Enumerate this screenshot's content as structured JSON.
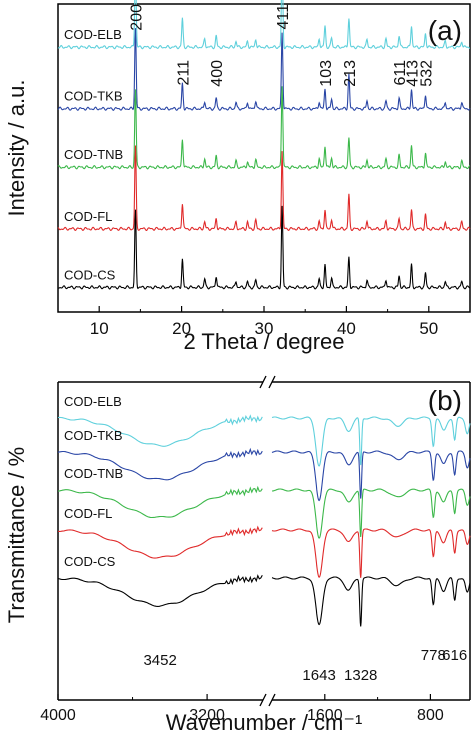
{
  "chart_data": [
    {
      "type": "line",
      "panel_label": "(a)",
      "xlabel": "2 Theta / degree",
      "ylabel": "Intensity / a.u.",
      "xlim": [
        5,
        55
      ],
      "xticks": [
        10,
        20,
        30,
        40,
        50
      ],
      "series": [
        {
          "name": "COD-ELB",
          "color": "#5fd0dc",
          "baseline": 0.14,
          "scale": 0.72
        },
        {
          "name": "COD-TKB",
          "color": "#2a46a6",
          "baseline": 0.34,
          "scale": 0.72
        },
        {
          "name": "COD-TNB",
          "color": "#3cb84a",
          "baseline": 0.53,
          "scale": 0.72
        },
        {
          "name": "COD-FL",
          "color": "#e02a2a",
          "baseline": 0.73,
          "scale": 0.72
        },
        {
          "name": "COD-CS",
          "color": "#000000",
          "baseline": 0.92,
          "scale": 0.72
        }
      ],
      "peaks": [
        {
          "two_theta": 14.4,
          "intensity": 1.0
        },
        {
          "two_theta": 20.1,
          "intensity": 0.34
        },
        {
          "two_theta": 22.8,
          "intensity": 0.1
        },
        {
          "two_theta": 24.2,
          "intensity": 0.14
        },
        {
          "two_theta": 26.6,
          "intensity": 0.08
        },
        {
          "two_theta": 28.0,
          "intensity": 0.08
        },
        {
          "two_theta": 29.0,
          "intensity": 0.1
        },
        {
          "two_theta": 32.2,
          "intensity": 1.0
        },
        {
          "two_theta": 36.7,
          "intensity": 0.1
        },
        {
          "two_theta": 37.4,
          "intensity": 0.26
        },
        {
          "two_theta": 38.2,
          "intensity": 0.12
        },
        {
          "two_theta": 40.3,
          "intensity": 0.4
        },
        {
          "two_theta": 42.5,
          "intensity": 0.1
        },
        {
          "two_theta": 44.8,
          "intensity": 0.1
        },
        {
          "two_theta": 46.4,
          "intensity": 0.14
        },
        {
          "two_theta": 47.9,
          "intensity": 0.26
        },
        {
          "two_theta": 49.6,
          "intensity": 0.18
        },
        {
          "two_theta": 52.0,
          "intensity": 0.08
        },
        {
          "two_theta": 54.0,
          "intensity": 0.08
        }
      ],
      "annotations": [
        {
          "text": "200",
          "x": 14.4
        },
        {
          "text": "211",
          "x": 20.1
        },
        {
          "text": "400",
          "x": 24.2
        },
        {
          "text": "411",
          "x": 32.2
        },
        {
          "text": "103",
          "x": 37.4
        },
        {
          "text": "213",
          "x": 40.3
        },
        {
          "text": "611",
          "x": 46.4
        },
        {
          "text": "413",
          "x": 47.9
        },
        {
          "text": "532",
          "x": 49.6
        }
      ]
    },
    {
      "type": "line",
      "panel_label": "(b)",
      "xlabel": "Wavenumber / cm⁻¹",
      "ylabel": "Transmittance / %",
      "x_break": [
        2900,
        2000
      ],
      "xticks": [
        {
          "label": "4000",
          "value": 4000
        },
        {
          "label": "3200",
          "value": 3200
        },
        {
          "label": "1600",
          "value": 1600
        },
        {
          "label": "800",
          "value": 800
        }
      ],
      "series": [
        {
          "name": "COD-ELB",
          "color": "#5fd0dc"
        },
        {
          "name": "COD-TKB",
          "color": "#2a46a6"
        },
        {
          "name": "COD-TNB",
          "color": "#3cb84a"
        },
        {
          "name": "COD-FL",
          "color": "#e02a2a"
        },
        {
          "name": "COD-CS",
          "color": "#000000"
        }
      ],
      "annotations": [
        {
          "text": "3452",
          "x": 3452
        },
        {
          "text": "1643",
          "x": 1643
        },
        {
          "text": "1328",
          "x": 1328
        },
        {
          "text": "778",
          "x": 778
        },
        {
          "text": "616",
          "x": 616
        }
      ]
    }
  ]
}
